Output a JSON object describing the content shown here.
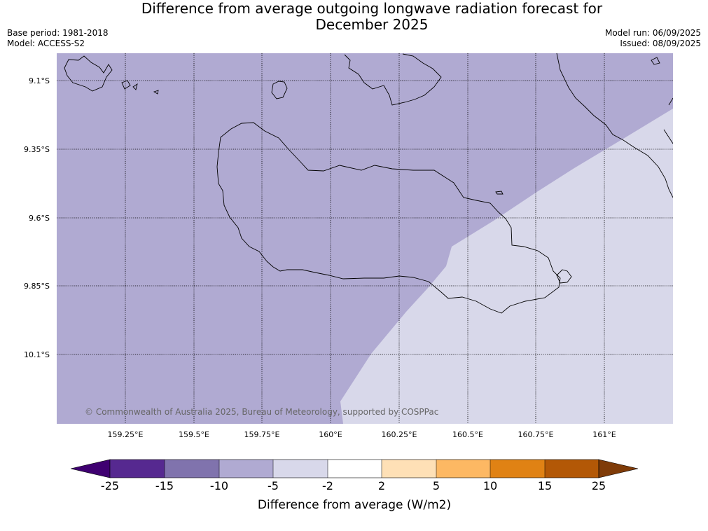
{
  "header": {
    "title_line1": "Difference from average outgoing longwave radiation forecast for",
    "title_line2": "December 2025",
    "base_period": "Base period: 1981-2018",
    "model": "Model: ACCESS-S2",
    "model_run": "Model run: 06/09/2025",
    "issued": "Issued: 08/09/2025"
  },
  "map": {
    "lat_labels": [
      "9.1°S",
      "9.35°S",
      "9.6°S",
      "9.85°S",
      "10.1°S"
    ],
    "lon_labels": [
      "159.25°E",
      "159.5°E",
      "159.75°E",
      "160°E",
      "160.25°E",
      "160.5°E",
      "160.75°E",
      "161°E"
    ],
    "copyright": "© Commonwealth of Australia 2025, Bureau of Meteorology, supported by COSPPac",
    "colors": {
      "minus10_to_minus5": "#b0aad2",
      "minus5_to_minus2": "#d8d8ea"
    }
  },
  "legend": {
    "title": "Difference from average (W/m2)",
    "ticks": [
      "-25",
      "-15",
      "-10",
      "-5",
      "-2",
      "2",
      "5",
      "10",
      "15",
      "25"
    ],
    "colors": [
      "#3f0071",
      "#562990",
      "#8073ad",
      "#b0aad2",
      "#d8d8ea",
      "#ffffff",
      "#fee0b6",
      "#fdb863",
      "#e08214",
      "#b35806",
      "#7f3b08"
    ]
  }
}
